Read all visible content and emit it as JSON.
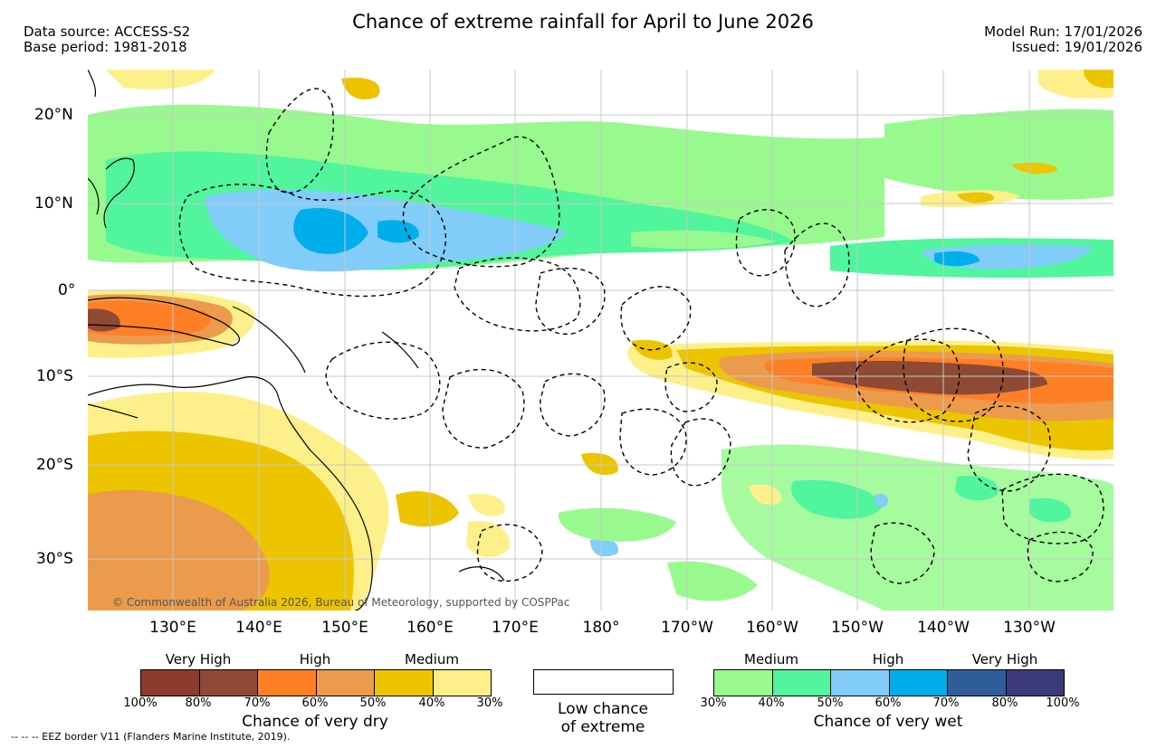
{
  "header": {
    "title": "Chance of extreme rainfall for April to June 2026",
    "data_source": "Data source: ACCESS-S2",
    "base_period": "Base period: 1981-2018",
    "model_run": "Model Run: 17/01/2026",
    "issued": "Issued: 19/01/2026"
  },
  "map": {
    "lat_labels": [
      "20°N",
      "10°N",
      "0°",
      "10°S",
      "20°S",
      "30°S"
    ],
    "lon_labels": [
      "130°E",
      "140°E",
      "150°E",
      "160°E",
      "170°E",
      "180°",
      "170°W",
      "160°W",
      "150°W",
      "140°W",
      "130°W"
    ],
    "copyright": "© Commonwealth of Australia 2026, Bureau of Meteorology, supported by COSPPac"
  },
  "legend": {
    "dry": {
      "categories": [
        "Very High",
        "High",
        "Medium"
      ],
      "colors": [
        "#8a3b2e",
        "#8e4a35",
        "#ff7f27",
        "#eb9b4b",
        "#ecc400",
        "#fdf08a"
      ],
      "ticks": [
        "100%",
        "80%",
        "70%",
        "60%",
        "50%",
        "40%",
        "30%"
      ],
      "caption": "Chance of very dry"
    },
    "low": {
      "caption_line1": "Low chance",
      "caption_line2": "of extreme"
    },
    "wet": {
      "categories": [
        "Medium",
        "High",
        "Very High"
      ],
      "colors": [
        "#98fa8e",
        "#50f59e",
        "#82cdfa",
        "#00aeeb",
        "#2e5d9a",
        "#3d3a7a"
      ],
      "ticks": [
        "30%",
        "40%",
        "50%",
        "60%",
        "70%",
        "80%",
        "100%"
      ],
      "caption": "Chance of very wet"
    }
  },
  "footnote": "-- -- -- EEZ border V11 (Flanders Marine Institute, 2019)."
}
